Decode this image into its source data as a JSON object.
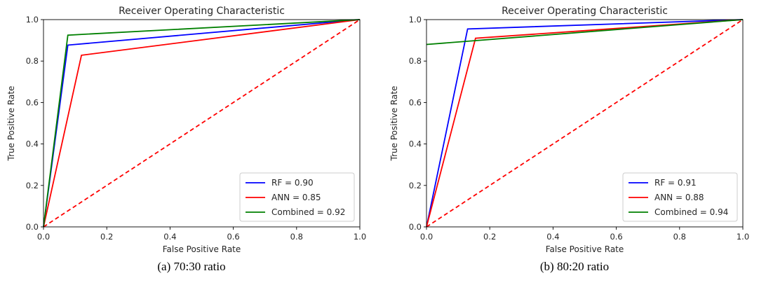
{
  "chart_data": [
    {
      "type": "line",
      "title": "Receiver Operating Characteristic",
      "xlabel": "False Positive Rate",
      "ylabel": "True Positive Rate",
      "xlim": [
        0,
        1
      ],
      "ylim": [
        0,
        1
      ],
      "xticks": [
        "0.0",
        "0.2",
        "0.4",
        "0.6",
        "0.8",
        "1.0"
      ],
      "yticks": [
        "0.0",
        "0.2",
        "0.4",
        "0.6",
        "0.8",
        "1.0"
      ],
      "grid": false,
      "legend_position": "lower-right",
      "caption": "(a) 70:30 ratio",
      "series": [
        {
          "name": "RF = 0.90",
          "color": "#0000ff",
          "x": [
            0,
            0.077,
            1
          ],
          "y": [
            0,
            0.877,
            1
          ]
        },
        {
          "name": "ANN = 0.85",
          "color": "#ff0000",
          "x": [
            0,
            0.12,
            1
          ],
          "y": [
            0,
            0.828,
            1
          ]
        },
        {
          "name": "Combined = 0.92",
          "color": "#008000",
          "x": [
            0,
            0.077,
            1
          ],
          "y": [
            0,
            0.925,
            1
          ]
        }
      ],
      "chance_line": {
        "color": "#ff0000",
        "style": "dashed",
        "x": [
          0,
          1
        ],
        "y": [
          0,
          1
        ]
      }
    },
    {
      "type": "line",
      "title": "Receiver Operating Characteristic",
      "xlabel": "False Positive Rate",
      "ylabel": "True Positive Rate",
      "xlim": [
        0,
        1
      ],
      "ylim": [
        0,
        1
      ],
      "xticks": [
        "0.0",
        "0.2",
        "0.4",
        "0.6",
        "0.8",
        "1.0"
      ],
      "yticks": [
        "0.0",
        "0.2",
        "0.4",
        "0.6",
        "0.8",
        "1.0"
      ],
      "grid": false,
      "legend_position": "lower-right",
      "caption": "(b) 80:20 ratio",
      "series": [
        {
          "name": "RF = 0.91",
          "color": "#0000ff",
          "x": [
            0,
            0.13,
            1
          ],
          "y": [
            0,
            0.955,
            1
          ]
        },
        {
          "name": "ANN = 0.88",
          "color": "#ff0000",
          "x": [
            0,
            0.155,
            1
          ],
          "y": [
            0,
            0.91,
            1
          ]
        },
        {
          "name": "Combined = 0.94",
          "color": "#008000",
          "x": [
            0,
            1
          ],
          "y": [
            0.88,
            1
          ]
        }
      ],
      "chance_line": {
        "color": "#ff0000",
        "style": "dashed",
        "x": [
          0,
          1
        ],
        "y": [
          0,
          1
        ]
      }
    }
  ]
}
